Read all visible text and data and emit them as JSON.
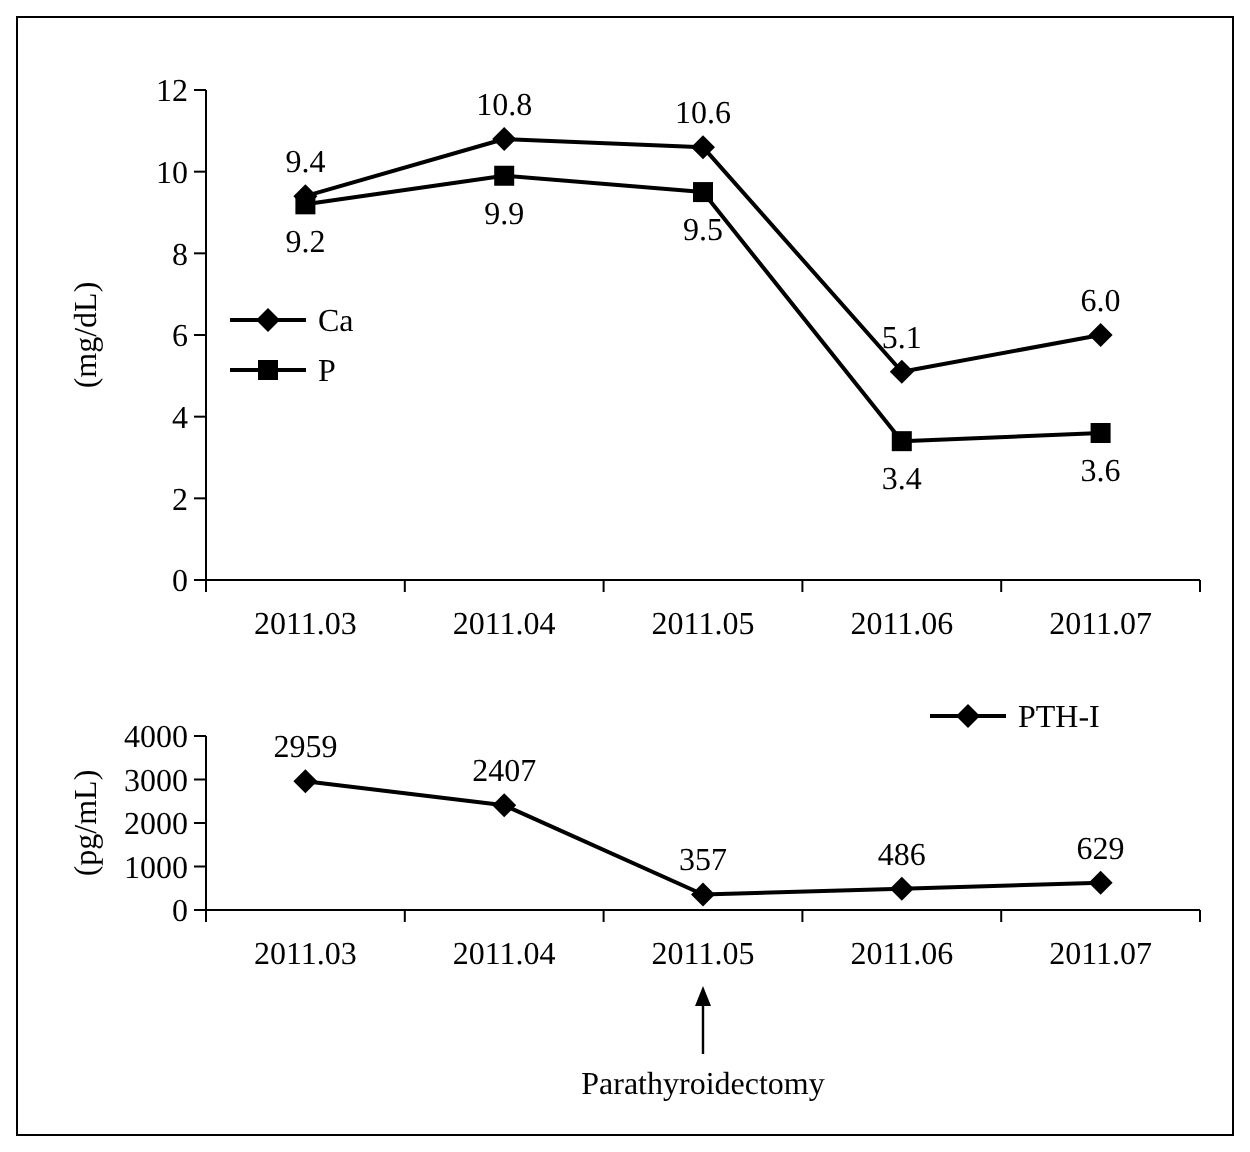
{
  "chart_data": [
    {
      "type": "line",
      "ylabel": "(mg/dL)",
      "categories": [
        "2011.03",
        "2011.04",
        "2011.05",
        "2011.06",
        "2011.07"
      ],
      "series": [
        {
          "name": "Ca",
          "color": "#000000",
          "marker": "diamond",
          "values": [
            9.4,
            10.8,
            10.6,
            5.1,
            6.0
          ],
          "value_labels": [
            "9.4",
            "10.8",
            "10.6",
            "5.1",
            "6.0"
          ]
        },
        {
          "name": "P",
          "color": "#000000",
          "marker": "square",
          "values": [
            9.2,
            9.9,
            9.5,
            3.4,
            3.6
          ],
          "value_labels": [
            "9.2",
            "9.9",
            "9.5",
            "3.4",
            "3.6"
          ]
        }
      ],
      "ylim": [
        0,
        12
      ],
      "yticks": [
        0,
        2,
        4,
        6,
        8,
        10,
        12
      ],
      "legend": "left",
      "grid": false
    },
    {
      "type": "line",
      "ylabel": "(pg/mL)",
      "categories": [
        "2011.03",
        "2011.04",
        "2011.05",
        "2011.06",
        "2011.07"
      ],
      "series": [
        {
          "name": "PTH-I",
          "color": "#000000",
          "marker": "diamond",
          "values": [
            2959,
            2407,
            357,
            486,
            629
          ]
        }
      ],
      "ylim": [
        0,
        4000
      ],
      "yticks": [
        0,
        1000,
        2000,
        3000,
        4000
      ],
      "data_labels": true,
      "legend": "top right",
      "grid": false,
      "annotations": [
        "Parathyroidectomy"
      ]
    }
  ]
}
